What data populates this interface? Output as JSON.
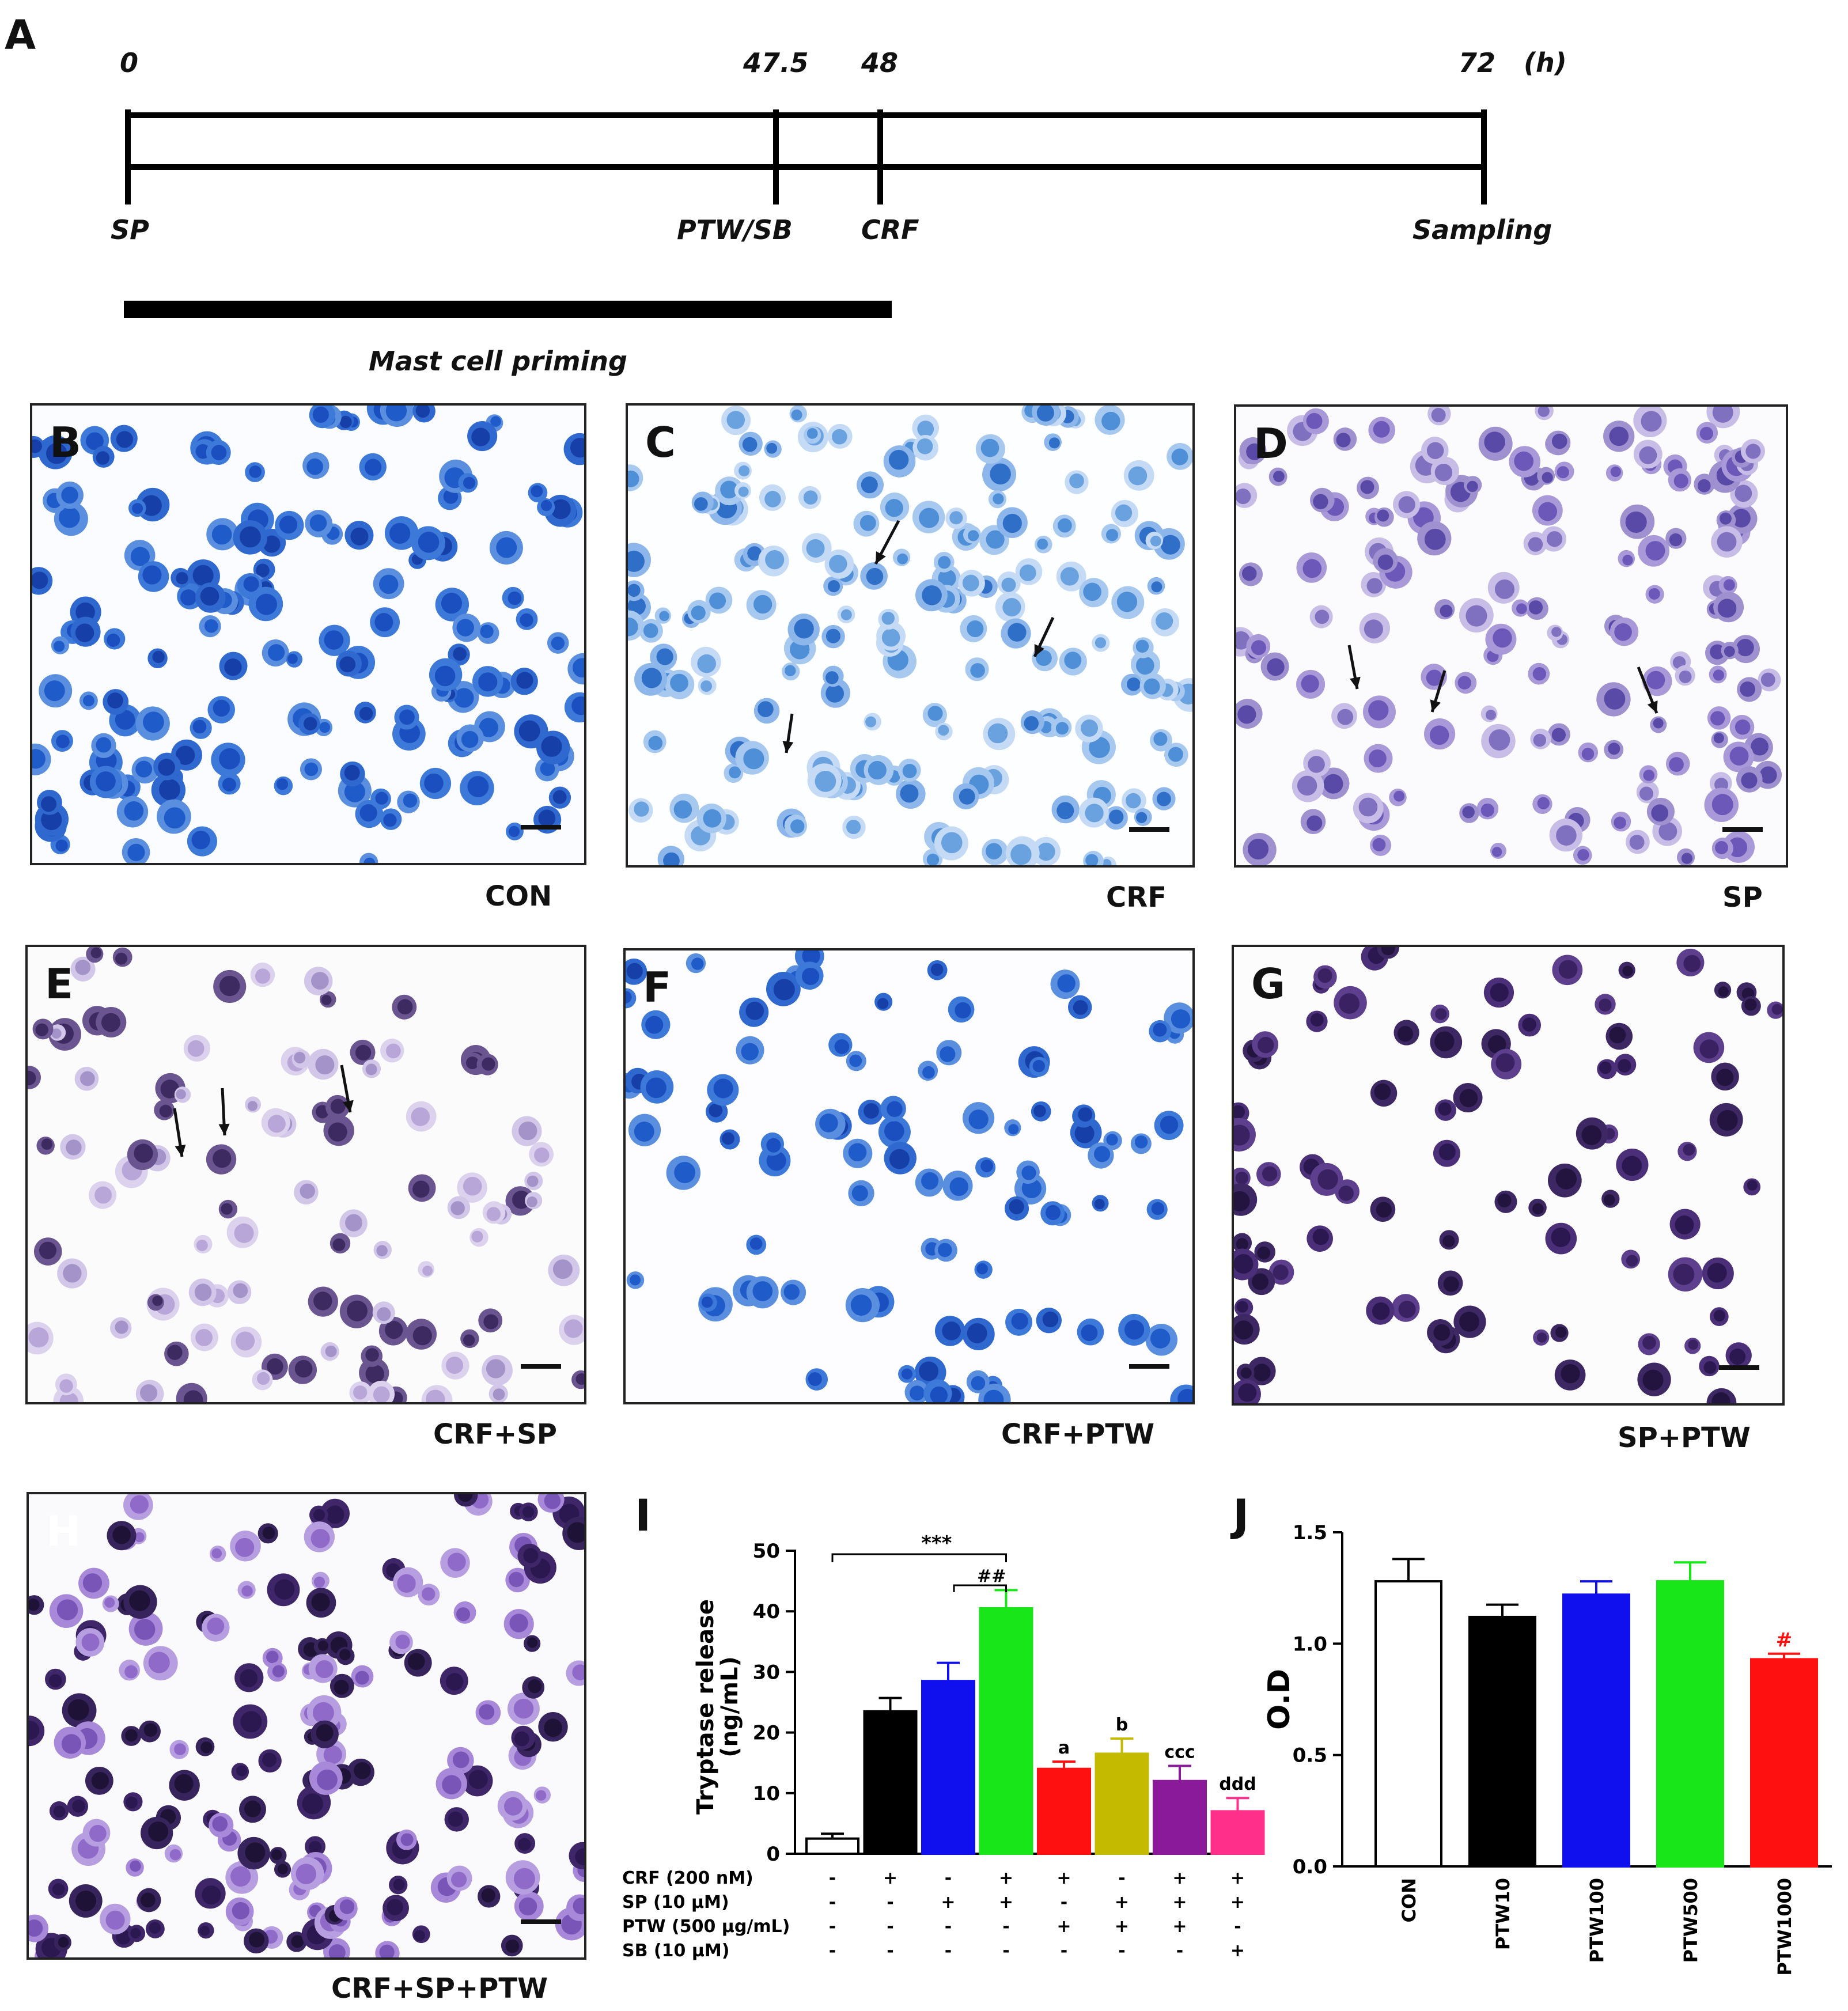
{
  "panel_a": {
    "letter": "A",
    "times": [
      {
        "label": "0",
        "value": 0
      },
      {
        "label": "47.5",
        "value": 47.5
      },
      {
        "label": "48",
        "value": 48
      },
      {
        "label": "72",
        "value": 72
      }
    ],
    "unit": "(h)",
    "events": [
      "SP",
      "PTW/SB",
      "CRF",
      "Sampling"
    ],
    "priming_label": "Mast cell priming"
  },
  "micrographs": [
    {
      "letter": "B",
      "caption": "CON"
    },
    {
      "letter": "C",
      "caption": "CRF"
    },
    {
      "letter": "D",
      "caption": "SP"
    },
    {
      "letter": "E",
      "caption": "CRF+SP"
    },
    {
      "letter": "F",
      "caption": "CRF+PTW"
    },
    {
      "letter": "G",
      "caption": "SP+PTW"
    },
    {
      "letter": "H",
      "caption": "CRF+SP+PTW"
    }
  ],
  "colors": {
    "white": "#ffffff",
    "black": "#000000",
    "blue": "#1010ee",
    "green": "#19e619",
    "red": "#ff1010",
    "olive": "#c4bb00",
    "purple": "#8a1a9a",
    "pink": "#ff2f8a",
    "stain_blue": "#1f5fc8",
    "stain_violet": "#7d63b8",
    "stain_dark": "#2c1850"
  },
  "chart_data": [
    {
      "panel": "I",
      "type": "bar",
      "ylabel": "Tryptase release\n(ng/mL)",
      "ylim": [
        0,
        50
      ],
      "yticks": [
        "0",
        "10",
        "20",
        "30",
        "40",
        "50"
      ],
      "values": [
        2.5,
        23.5,
        28.5,
        40.5,
        14,
        16.5,
        12,
        7
      ],
      "errors": [
        0.8,
        2.2,
        3,
        3,
        1.2,
        2.5,
        2.5,
        2.2
      ],
      "bar_colors": [
        "#ffffff",
        "#000000",
        "#1010ee",
        "#19e619",
        "#ff1010",
        "#c4bb00",
        "#8a1a9a",
        "#ff2f8a"
      ],
      "annotations": [
        "",
        "",
        "",
        "",
        "a",
        "b",
        "ccc",
        "ddd"
      ],
      "significance": [
        "***",
        "##"
      ],
      "treatments": [
        {
          "label": "CRF (200 nM)",
          "signs": [
            "-",
            "+",
            "-",
            "+",
            "+",
            "-",
            "+",
            "+"
          ]
        },
        {
          "label": "SP (10 μM)",
          "signs": [
            "-",
            "-",
            "+",
            "+",
            "-",
            "+",
            "+",
            "+"
          ]
        },
        {
          "label": "PTW (500 μg/mL)",
          "signs": [
            "-",
            "-",
            "-",
            "-",
            "+",
            "+",
            "+",
            "-"
          ]
        },
        {
          "label": "SB (10 μM)",
          "signs": [
            "-",
            "-",
            "-",
            "-",
            "-",
            "-",
            "-",
            "+"
          ]
        }
      ],
      "grid": false
    },
    {
      "panel": "J",
      "type": "bar",
      "ylabel": "O.D",
      "ylim": [
        0,
        1.5
      ],
      "yticks": [
        "0.0",
        "0.5",
        "1.0",
        "1.5"
      ],
      "categories": [
        "CON",
        "PTW10",
        "PTW100",
        "PTW500",
        "PTW1000"
      ],
      "values": [
        1.28,
        1.12,
        1.22,
        1.28,
        0.93
      ],
      "errors": [
        0.1,
        0.055,
        0.06,
        0.085,
        0.025
      ],
      "bar_colors": [
        "#ffffff",
        "#000000",
        "#1010ee",
        "#19e619",
        "#ff1010"
      ],
      "annotations": [
        "",
        "",
        "",
        "",
        "#"
      ],
      "grid": false
    }
  ]
}
